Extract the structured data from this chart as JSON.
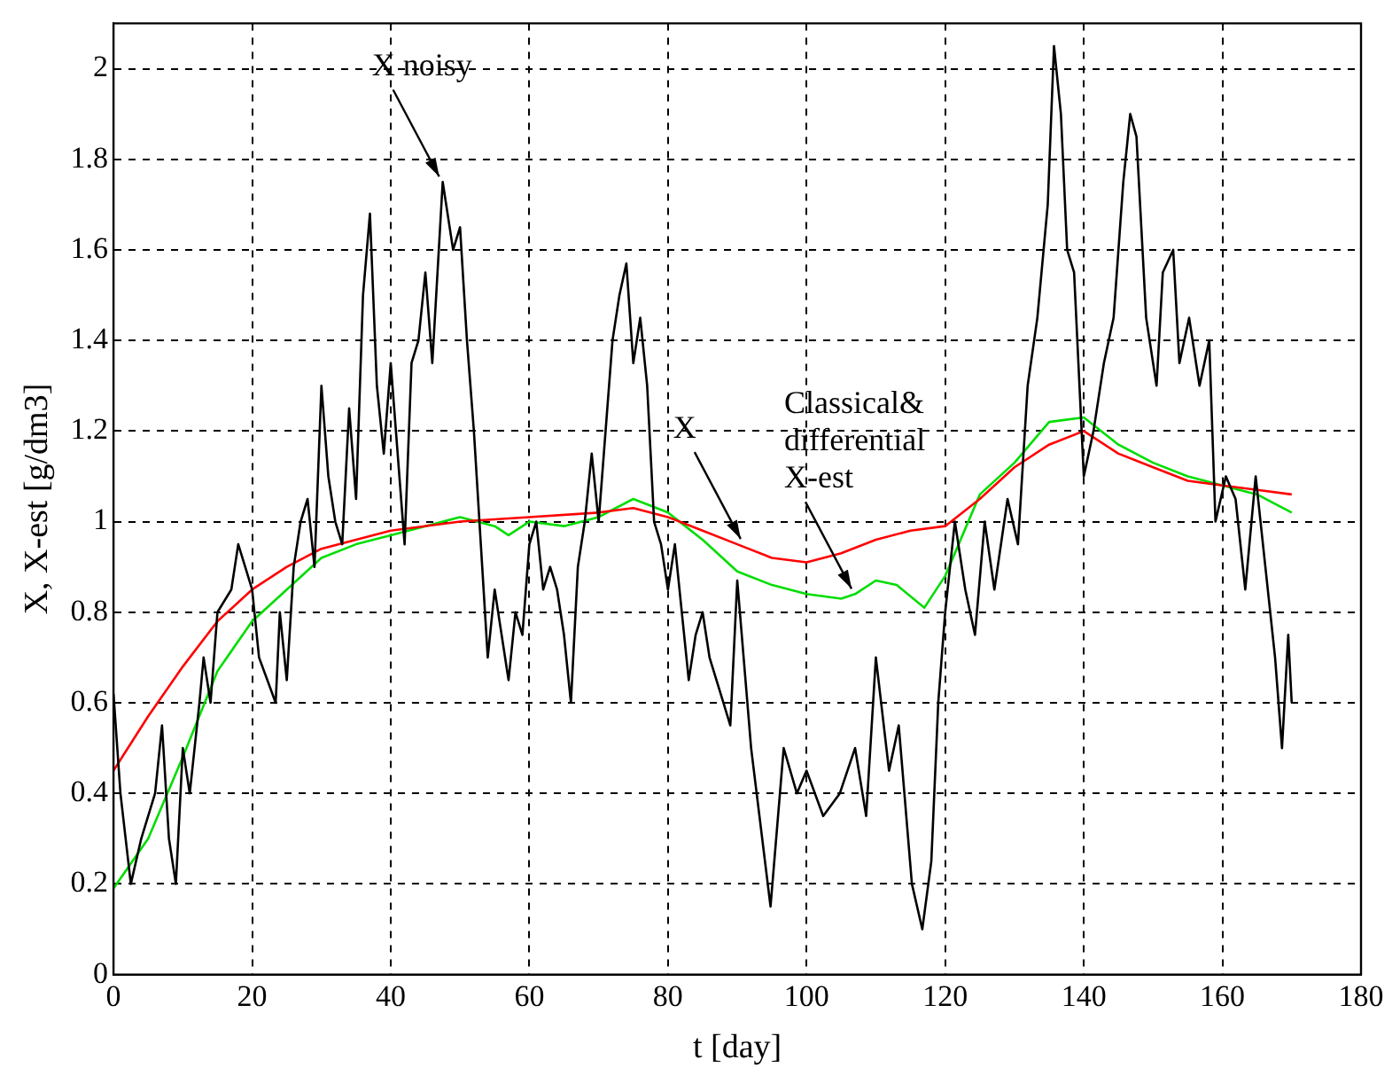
{
  "chart_data": {
    "type": "line",
    "xlabel": "t [day]",
    "ylabel": "X, X-est [g/dm3]",
    "xlim": [
      0,
      180
    ],
    "xticks": [
      0,
      20,
      40,
      60,
      80,
      100,
      120,
      140,
      160,
      180
    ],
    "ylim": [
      0,
      2.1
    ],
    "yticks": [
      0,
      0.2,
      0.4,
      0.6,
      0.8,
      1,
      1.2,
      1.4,
      1.6,
      1.8,
      2
    ],
    "grid": true,
    "legend": false,
    "marker": "none",
    "line_style": "solid",
    "annotations": [
      {
        "text": "X noisy",
        "x": 47.5,
        "y": 1.75
      },
      {
        "text": "X",
        "x": 91,
        "y": 0.95
      },
      {
        "text": "Classical&\ndifferential\nX-est",
        "x": 107,
        "y": 0.84
      }
    ],
    "series": [
      {
        "color": "#000000",
        "x": [
          0,
          1,
          2.5,
          4,
          6,
          7,
          8,
          9,
          10,
          11,
          12.4,
          13,
          14,
          15,
          17,
          18,
          19,
          20,
          21,
          23.4,
          24,
          25,
          26,
          27,
          28,
          29,
          30,
          31,
          32,
          33,
          34,
          35,
          36,
          37,
          38,
          39,
          40,
          41,
          42,
          43,
          44,
          45,
          46,
          47.5,
          49,
          50,
          51,
          52,
          53,
          54,
          55,
          57,
          58,
          59,
          60,
          61,
          62,
          63,
          64,
          65,
          66,
          67,
          68,
          69,
          70,
          71,
          72,
          73,
          74,
          75,
          76,
          77,
          78,
          79,
          80,
          81,
          82,
          83,
          84,
          85,
          86,
          88,
          89,
          90,
          92,
          94.8,
          96.7,
          98.6,
          100,
          102.4,
          104.8,
          107,
          108.6,
          110,
          111.9,
          113.3,
          115.2,
          116.7,
          118,
          119,
          120,
          121.4,
          122.9,
          124.3,
          125.7,
          127.1,
          129,
          130.5,
          131.9,
          133.3,
          134.8,
          135.7,
          136.7,
          137.6,
          138.6,
          140,
          140.7,
          141.4,
          142.9,
          144.3,
          145.7,
          146.7,
          147.6,
          149,
          150.5,
          151.4,
          152.9,
          153.8,
          155.2,
          156.7,
          158.1,
          159,
          160.5,
          161.9,
          163.3,
          164.8,
          166.2,
          167.6,
          168.6,
          169.5,
          170
        ],
        "values": [
          0.62,
          0.4,
          0.2,
          0.3,
          0.4,
          0.55,
          0.3,
          0.2,
          0.5,
          0.4,
          0.6,
          0.7,
          0.6,
          0.8,
          0.85,
          0.95,
          0.9,
          0.85,
          0.7,
          0.6,
          0.8,
          0.65,
          0.9,
          1.0,
          1.05,
          0.9,
          1.3,
          1.1,
          1.0,
          0.95,
          1.25,
          1.05,
          1.5,
          1.68,
          1.3,
          1.15,
          1.35,
          1.15,
          0.95,
          1.35,
          1.4,
          1.55,
          1.35,
          1.75,
          1.6,
          1.65,
          1.4,
          1.2,
          0.95,
          0.7,
          0.85,
          0.65,
          0.8,
          0.75,
          0.95,
          1.0,
          0.85,
          0.9,
          0.85,
          0.75,
          0.6,
          0.9,
          1.0,
          1.15,
          1.0,
          1.2,
          1.4,
          1.5,
          1.57,
          1.35,
          1.45,
          1.3,
          1.0,
          0.95,
          0.85,
          0.95,
          0.8,
          0.65,
          0.75,
          0.8,
          0.7,
          0.6,
          0.55,
          0.87,
          0.5,
          0.15,
          0.5,
          0.4,
          0.45,
          0.35,
          0.4,
          0.5,
          0.35,
          0.7,
          0.45,
          0.55,
          0.2,
          0.1,
          0.25,
          0.6,
          0.8,
          1.0,
          0.85,
          0.75,
          1.0,
          0.85,
          1.05,
          0.95,
          1.3,
          1.45,
          1.7,
          2.05,
          1.9,
          1.6,
          1.55,
          1.1,
          1.15,
          1.2,
          1.35,
          1.45,
          1.75,
          1.9,
          1.85,
          1.45,
          1.3,
          1.55,
          1.6,
          1.35,
          1.45,
          1.3,
          1.4,
          1.0,
          1.1,
          1.05,
          0.85,
          1.1,
          0.9,
          0.7,
          0.5,
          0.75,
          0.6
        ]
      },
      {
        "color": "#ff0000",
        "x": [
          0,
          5,
          10,
          15,
          20,
          25,
          30,
          35,
          40,
          50,
          60,
          70,
          75,
          80,
          85,
          90,
          95,
          100,
          105,
          110,
          115,
          120,
          125,
          130,
          135,
          140,
          145,
          150,
          155,
          160,
          165,
          170
        ],
        "values": [
          0.45,
          0.57,
          0.68,
          0.78,
          0.85,
          0.9,
          0.94,
          0.96,
          0.98,
          1.0,
          1.01,
          1.02,
          1.03,
          1.01,
          0.98,
          0.95,
          0.92,
          0.91,
          0.93,
          0.96,
          0.98,
          0.99,
          1.05,
          1.12,
          1.17,
          1.2,
          1.15,
          1.12,
          1.09,
          1.08,
          1.07,
          1.06
        ]
      },
      {
        "color": "#00dd00",
        "x": [
          0,
          5,
          10,
          15,
          20,
          25,
          30,
          35,
          40,
          45,
          50,
          55,
          57,
          60,
          65,
          70,
          75,
          80,
          85,
          90,
          95,
          100,
          105,
          107,
          110,
          113,
          117,
          120,
          125,
          130,
          135,
          140,
          145,
          150,
          155,
          160,
          165,
          170
        ],
        "values": [
          0.19,
          0.3,
          0.48,
          0.67,
          0.78,
          0.85,
          0.92,
          0.95,
          0.97,
          0.99,
          1.01,
          0.99,
          0.97,
          1.0,
          0.99,
          1.01,
          1.05,
          1.02,
          0.96,
          0.89,
          0.86,
          0.84,
          0.83,
          0.84,
          0.87,
          0.86,
          0.81,
          0.88,
          1.06,
          1.13,
          1.22,
          1.23,
          1.17,
          1.13,
          1.1,
          1.08,
          1.06,
          1.02
        ]
      }
    ]
  }
}
